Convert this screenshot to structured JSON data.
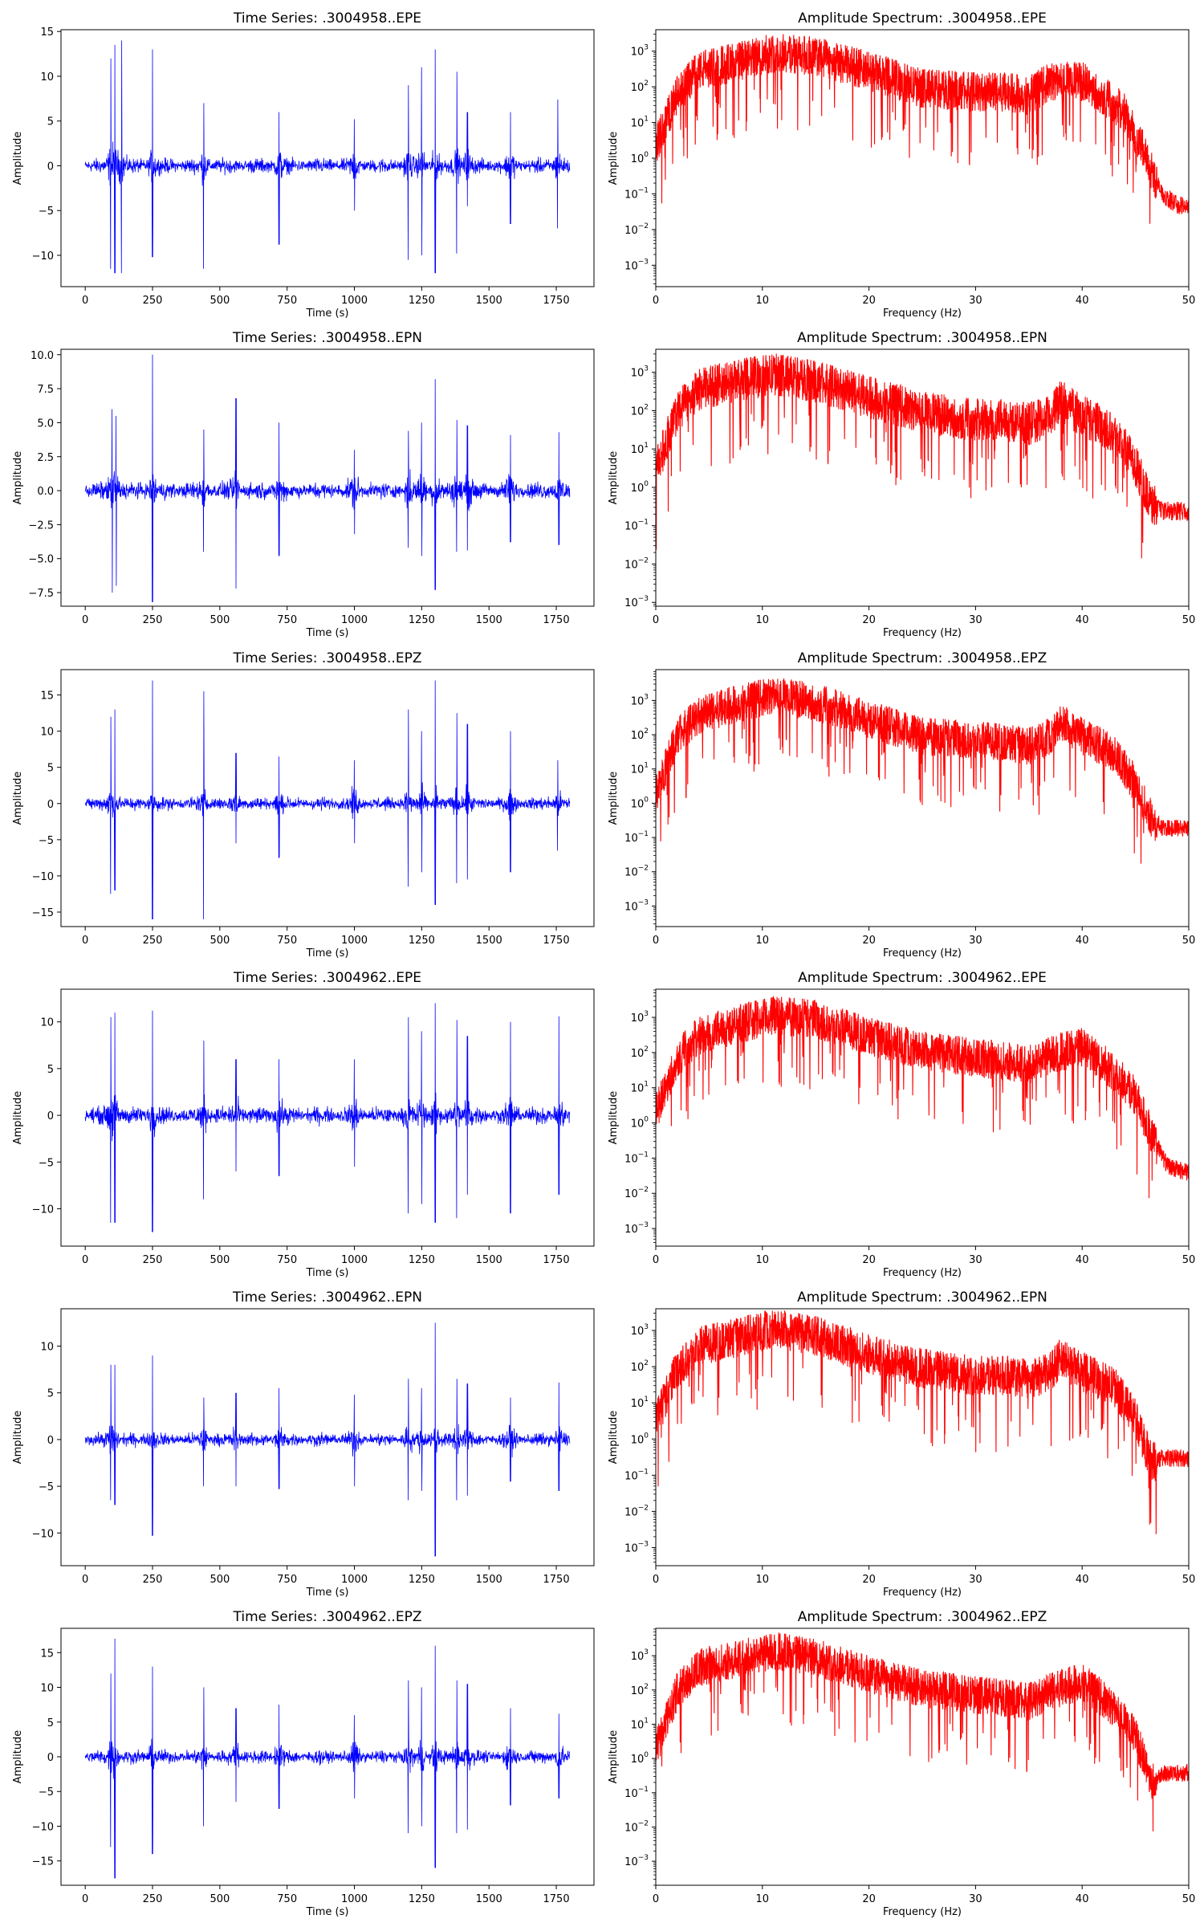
{
  "chart_data": [
    {
      "type": "line",
      "title": "Time Series: .3004958..EPE",
      "xlabel": "Time (s)",
      "ylabel": "Amplitude",
      "xlim": [
        -90,
        1890
      ],
      "ylim": [
        -13.5,
        15.2
      ],
      "xticks": [
        0,
        250,
        500,
        750,
        1000,
        1250,
        1500,
        1750
      ],
      "yticks": [
        -10,
        -5,
        0,
        5,
        10,
        15
      ],
      "xtick_labels": [
        "0",
        "250",
        "500",
        "750",
        "1000",
        "1250",
        "1500",
        "1750"
      ],
      "ytick_labels": [
        "−10",
        "−5",
        "0",
        "5",
        "10",
        "15"
      ],
      "color": "#0000ff",
      "noise_level": 1.2,
      "peaks": [
        [
          95,
          12,
          -11.5
        ],
        [
          110,
          13.5,
          -12
        ],
        [
          135,
          14,
          -12
        ],
        [
          250,
          13,
          -10.2
        ],
        [
          440,
          7,
          -11.5
        ],
        [
          720,
          6,
          -8.8
        ],
        [
          1000,
          5.2,
          -5
        ],
        [
          1200,
          9,
          -10.5
        ],
        [
          1250,
          11,
          -10
        ],
        [
          1300,
          13,
          -12
        ],
        [
          1380,
          10.5,
          -9.8
        ],
        [
          1420,
          6,
          -4.5
        ],
        [
          1580,
          6,
          -6.5
        ],
        [
          1755,
          7.4,
          -7
        ]
      ]
    },
    {
      "type": "line",
      "title": "Amplitude Spectrum: .3004958..EPE",
      "xlabel": "Frequency (Hz)",
      "ylabel": "Amplitude",
      "xlim": [
        0,
        50
      ],
      "ylog_range": [
        -3.6,
        3.6
      ],
      "xticks": [
        0,
        10,
        20,
        30,
        40,
        50
      ],
      "xtick_labels": [
        "0",
        "10",
        "20",
        "30",
        "40",
        "50"
      ],
      "ytick_exponents": [
        -3,
        -2,
        -1,
        0,
        1,
        2,
        3
      ],
      "color": "#ff0000",
      "envelope": [
        [
          0,
          0.4
        ],
        [
          2,
          1.8
        ],
        [
          4,
          2.5
        ],
        [
          7,
          2.7
        ],
        [
          11,
          3.0
        ],
        [
          15,
          2.9
        ],
        [
          20,
          2.5
        ],
        [
          25,
          2.0
        ],
        [
          30,
          1.9
        ],
        [
          33,
          1.9
        ],
        [
          35,
          1.8
        ],
        [
          37,
          2.2
        ],
        [
          40,
          2.2
        ],
        [
          42,
          1.8
        ],
        [
          44,
          1.3
        ],
        [
          46,
          0.1
        ],
        [
          47.5,
          -1.0
        ],
        [
          49,
          -1.3
        ],
        [
          50,
          -1.3
        ]
      ]
    },
    {
      "type": "line",
      "title": "Time Series: .3004958..EPN",
      "xlabel": "Time (s)",
      "ylabel": "Amplitude",
      "xlim": [
        -90,
        1890
      ],
      "ylim": [
        -8.5,
        10.4
      ],
      "xticks": [
        0,
        250,
        500,
        750,
        1000,
        1250,
        1500,
        1750
      ],
      "yticks": [
        -7.5,
        -5.0,
        -2.5,
        0.0,
        2.5,
        5.0,
        7.5,
        10.0
      ],
      "xtick_labels": [
        "0",
        "250",
        "500",
        "750",
        "1000",
        "1250",
        "1500",
        "1750"
      ],
      "ytick_labels": [
        "−7.5",
        "−5.0",
        "−2.5",
        "0.0",
        "2.5",
        "5.0",
        "7.5",
        "10.0"
      ],
      "color": "#0000ff",
      "noise_level": 0.9,
      "peaks": [
        [
          100,
          6,
          -7.5
        ],
        [
          115,
          5.5,
          -7
        ],
        [
          250,
          10,
          -8.2
        ],
        [
          440,
          4.5,
          -4.5
        ],
        [
          560,
          6.8,
          -7.2
        ],
        [
          720,
          5,
          -4.8
        ],
        [
          1000,
          3,
          -3.2
        ],
        [
          1200,
          4.4,
          -4.2
        ],
        [
          1250,
          5,
          -4.8
        ],
        [
          1300,
          8.2,
          -7.3
        ],
        [
          1380,
          5.2,
          -4.5
        ],
        [
          1420,
          4.8,
          -4.4
        ],
        [
          1580,
          4.1,
          -3.8
        ],
        [
          1760,
          4.3,
          -4.0
        ]
      ]
    },
    {
      "type": "line",
      "title": "Amplitude Spectrum: .3004958..EPN",
      "xlabel": "Frequency (Hz)",
      "ylabel": "Amplitude",
      "xlim": [
        0,
        50
      ],
      "ylog_range": [
        -3.1,
        3.6
      ],
      "xticks": [
        0,
        10,
        20,
        30,
        40,
        50
      ],
      "xtick_labels": [
        "0",
        "10",
        "20",
        "30",
        "40",
        "50"
      ],
      "ytick_exponents": [
        -3,
        -2,
        -1,
        0,
        1,
        2,
        3
      ],
      "color": "#ff0000",
      "envelope": [
        [
          0,
          0.5
        ],
        [
          2,
          2.0
        ],
        [
          4,
          2.6
        ],
        [
          7,
          2.8
        ],
        [
          11,
          3.0
        ],
        [
          15,
          2.8
        ],
        [
          20,
          2.4
        ],
        [
          25,
          2.0
        ],
        [
          30,
          1.8
        ],
        [
          33,
          1.8
        ],
        [
          35,
          1.7
        ],
        [
          37,
          1.9
        ],
        [
          38,
          2.3
        ],
        [
          40,
          1.9
        ],
        [
          43,
          1.5
        ],
        [
          45,
          0.6
        ],
        [
          46.5,
          -0.4
        ],
        [
          47.5,
          -0.6
        ],
        [
          50,
          -0.6
        ]
      ]
    },
    {
      "type": "line",
      "title": "Time Series: .3004958..EPZ",
      "xlabel": "Time (s)",
      "ylabel": "Amplitude",
      "xlim": [
        -90,
        1890
      ],
      "ylim": [
        -17,
        18.5
      ],
      "xticks": [
        0,
        250,
        500,
        750,
        1000,
        1250,
        1500,
        1750
      ],
      "yticks": [
        -15,
        -10,
        -5,
        0,
        5,
        10,
        15
      ],
      "xtick_labels": [
        "0",
        "250",
        "500",
        "750",
        "1000",
        "1250",
        "1500",
        "1750"
      ],
      "ytick_labels": [
        "−15",
        "−10",
        "−5",
        "0",
        "5",
        "10",
        "15"
      ],
      "color": "#0000ff",
      "noise_level": 1.3,
      "peaks": [
        [
          95,
          12,
          -12.5
        ],
        [
          110,
          13,
          -12
        ],
        [
          250,
          17,
          -16
        ],
        [
          440,
          15.5,
          -16
        ],
        [
          560,
          7,
          -5.5
        ],
        [
          720,
          6.5,
          -7.5
        ],
        [
          1000,
          6,
          -5.5
        ],
        [
          1200,
          13,
          -11.5
        ],
        [
          1250,
          10,
          -9.5
        ],
        [
          1300,
          17,
          -14
        ],
        [
          1380,
          12.5,
          -11
        ],
        [
          1420,
          11,
          -10.5
        ],
        [
          1580,
          10,
          -9.5
        ],
        [
          1755,
          6,
          -6.5
        ]
      ]
    },
    {
      "type": "line",
      "title": "Amplitude Spectrum: .3004958..EPZ",
      "xlabel": "Frequency (Hz)",
      "ylabel": "Amplitude",
      "xlim": [
        0,
        50
      ],
      "ylog_range": [
        -3.6,
        3.9
      ],
      "xticks": [
        0,
        10,
        20,
        30,
        40,
        50
      ],
      "xtick_labels": [
        "0",
        "10",
        "20",
        "30",
        "40",
        "50"
      ],
      "ytick_exponents": [
        -3,
        -2,
        -1,
        0,
        1,
        2,
        3
      ],
      "color": "#ff0000",
      "envelope": [
        [
          0,
          0.3
        ],
        [
          2,
          2.0
        ],
        [
          4,
          2.6
        ],
        [
          7,
          2.9
        ],
        [
          11,
          3.2
        ],
        [
          15,
          3.0
        ],
        [
          20,
          2.5
        ],
        [
          25,
          2.0
        ],
        [
          30,
          1.9
        ],
        [
          33,
          1.8
        ],
        [
          35,
          1.7
        ],
        [
          37,
          2.0
        ],
        [
          38,
          2.4
        ],
        [
          40,
          2.0
        ],
        [
          43,
          1.5
        ],
        [
          45,
          0.6
        ],
        [
          46.5,
          -0.4
        ],
        [
          47.5,
          -0.7
        ],
        [
          50,
          -0.7
        ]
      ]
    },
    {
      "type": "line",
      "title": "Time Series: .3004962..EPE",
      "xlabel": "Time (s)",
      "ylabel": "Amplitude",
      "xlim": [
        -90,
        1890
      ],
      "ylim": [
        -14,
        13.5
      ],
      "xticks": [
        0,
        250,
        500,
        750,
        1000,
        1250,
        1500,
        1750
      ],
      "yticks": [
        -10,
        -5,
        0,
        5,
        10
      ],
      "xtick_labels": [
        "0",
        "250",
        "500",
        "750",
        "1000",
        "1250",
        "1500",
        "1750"
      ],
      "ytick_labels": [
        "−10",
        "−5",
        "0",
        "5",
        "10"
      ],
      "color": "#0000ff",
      "noise_level": 1.3,
      "peaks": [
        [
          95,
          10.5,
          -11.5
        ],
        [
          110,
          11,
          -11.5
        ],
        [
          250,
          11.2,
          -12.5
        ],
        [
          440,
          8,
          -9
        ],
        [
          560,
          6,
          -6
        ],
        [
          720,
          6,
          -6.5
        ],
        [
          1000,
          6,
          -5.5
        ],
        [
          1200,
          10.5,
          -10.5
        ],
        [
          1250,
          9,
          -9.5
        ],
        [
          1300,
          12,
          -11.5
        ],
        [
          1380,
          10.2,
          -11
        ],
        [
          1420,
          8.5,
          -8.5
        ],
        [
          1580,
          10,
          -10.5
        ],
        [
          1760,
          10.6,
          -8.5
        ]
      ]
    },
    {
      "type": "line",
      "title": "Amplitude Spectrum: .3004962..EPE",
      "xlabel": "Frequency (Hz)",
      "ylabel": "Amplitude",
      "xlim": [
        0,
        50
      ],
      "ylog_range": [
        -3.5,
        3.8
      ],
      "xticks": [
        0,
        10,
        20,
        30,
        40,
        50
      ],
      "xtick_labels": [
        "0",
        "10",
        "20",
        "30",
        "40",
        "50"
      ],
      "ytick_exponents": [
        -3,
        -2,
        -1,
        0,
        1,
        2,
        3
      ],
      "color": "#ff0000",
      "envelope": [
        [
          0,
          0.3
        ],
        [
          2,
          1.9
        ],
        [
          4,
          2.5
        ],
        [
          7,
          2.8
        ],
        [
          11,
          3.1
        ],
        [
          15,
          3.0
        ],
        [
          20,
          2.5
        ],
        [
          25,
          2.1
        ],
        [
          30,
          1.9
        ],
        [
          33,
          1.8
        ],
        [
          35,
          1.7
        ],
        [
          37,
          2.0
        ],
        [
          40,
          2.2
        ],
        [
          43,
          1.5
        ],
        [
          45,
          0.8
        ],
        [
          46.5,
          -0.3
        ],
        [
          48,
          -1.2
        ],
        [
          50,
          -1.4
        ]
      ]
    },
    {
      "type": "line",
      "title": "Time Series: .3004962..EPN",
      "xlabel": "Time (s)",
      "ylabel": "Amplitude",
      "xlim": [
        -90,
        1890
      ],
      "ylim": [
        -13.5,
        14
      ],
      "xticks": [
        0,
        250,
        500,
        750,
        1000,
        1250,
        1500,
        1750
      ],
      "yticks": [
        -10,
        -5,
        0,
        5,
        10
      ],
      "xtick_labels": [
        "0",
        "250",
        "500",
        "750",
        "1000",
        "1250",
        "1500",
        "1750"
      ],
      "ytick_labels": [
        "−10",
        "−5",
        "0",
        "5",
        "10"
      ],
      "color": "#0000ff",
      "noise_level": 1.0,
      "peaks": [
        [
          95,
          8,
          -6.5
        ],
        [
          110,
          8,
          -7
        ],
        [
          250,
          9,
          -10.3
        ],
        [
          440,
          4.5,
          -5
        ],
        [
          560,
          5,
          -5
        ],
        [
          720,
          5.5,
          -5.3
        ],
        [
          1000,
          4.8,
          -5
        ],
        [
          1200,
          6.5,
          -6.5
        ],
        [
          1250,
          5.5,
          -5.5
        ],
        [
          1300,
          12.5,
          -12.5
        ],
        [
          1380,
          6.5,
          -6.5
        ],
        [
          1420,
          6,
          -6
        ],
        [
          1580,
          4.5,
          -4.5
        ],
        [
          1760,
          6.1,
          -5.5
        ]
      ]
    },
    {
      "type": "line",
      "title": "Amplitude Spectrum: .3004962..EPN",
      "xlabel": "Frequency (Hz)",
      "ylabel": "Amplitude",
      "xlim": [
        0,
        50
      ],
      "ylog_range": [
        -3.5,
        3.6
      ],
      "xticks": [
        0,
        10,
        20,
        30,
        40,
        50
      ],
      "xtick_labels": [
        "0",
        "10",
        "20",
        "30",
        "40",
        "50"
      ],
      "ytick_exponents": [
        -3,
        -2,
        -1,
        0,
        1,
        2,
        3
      ],
      "color": "#ff0000",
      "envelope": [
        [
          0,
          0.5
        ],
        [
          2,
          2.0
        ],
        [
          4,
          2.6
        ],
        [
          7,
          2.8
        ],
        [
          11,
          3.1
        ],
        [
          15,
          2.9
        ],
        [
          20,
          2.4
        ],
        [
          25,
          2.0
        ],
        [
          30,
          1.8
        ],
        [
          33,
          1.8
        ],
        [
          35,
          1.7
        ],
        [
          37,
          1.9
        ],
        [
          38,
          2.3
        ],
        [
          40,
          1.9
        ],
        [
          43,
          1.5
        ],
        [
          45,
          0.6
        ],
        [
          46.5,
          -0.6
        ],
        [
          47.5,
          -0.5
        ],
        [
          50,
          -0.5
        ]
      ]
    },
    {
      "type": "line",
      "title": "Time Series: .3004962..EPZ",
      "xlabel": "Time (s)",
      "ylabel": "Amplitude",
      "xlim": [
        -90,
        1890
      ],
      "ylim": [
        -18.5,
        18.5
      ],
      "xticks": [
        0,
        250,
        500,
        750,
        1000,
        1250,
        1500,
        1750
      ],
      "yticks": [
        -15,
        -10,
        -5,
        0,
        5,
        10,
        15
      ],
      "xtick_labels": [
        "0",
        "250",
        "500",
        "750",
        "1000",
        "1250",
        "1500",
        "1750"
      ],
      "ytick_labels": [
        "−15",
        "−10",
        "−5",
        "0",
        "5",
        "10",
        "15"
      ],
      "color": "#0000ff",
      "noise_level": 1.4,
      "peaks": [
        [
          95,
          12,
          -13
        ],
        [
          110,
          17,
          -17.5
        ],
        [
          250,
          13,
          -14
        ],
        [
          440,
          10,
          -10
        ],
        [
          560,
          7,
          -6.5
        ],
        [
          720,
          7.5,
          -7.5
        ],
        [
          1000,
          6,
          -6
        ],
        [
          1200,
          11,
          -11
        ],
        [
          1250,
          10,
          -10
        ],
        [
          1300,
          16,
          -16
        ],
        [
          1380,
          11,
          -11
        ],
        [
          1420,
          10.5,
          -10.5
        ],
        [
          1580,
          7,
          -7
        ],
        [
          1760,
          6.2,
          -6
        ]
      ]
    },
    {
      "type": "line",
      "title": "Amplitude Spectrum: .3004962..EPZ",
      "xlabel": "Frequency (Hz)",
      "ylabel": "Amplitude",
      "xlim": [
        0,
        50
      ],
      "ylog_range": [
        -3.7,
        3.8
      ],
      "xticks": [
        0,
        10,
        20,
        30,
        40,
        50
      ],
      "xtick_labels": [
        "0",
        "10",
        "20",
        "30",
        "40",
        "50"
      ],
      "ytick_exponents": [
        -3,
        -2,
        -1,
        0,
        1,
        2,
        3
      ],
      "color": "#ff0000",
      "envelope": [
        [
          0,
          0.3
        ],
        [
          2,
          2.0
        ],
        [
          4,
          2.7
        ],
        [
          7,
          2.9
        ],
        [
          11,
          3.2
        ],
        [
          15,
          3.0
        ],
        [
          20,
          2.5
        ],
        [
          25,
          2.1
        ],
        [
          30,
          1.9
        ],
        [
          33,
          1.8
        ],
        [
          35,
          1.7
        ],
        [
          37,
          2.0
        ],
        [
          40,
          2.3
        ],
        [
          43,
          1.5
        ],
        [
          45,
          0.7
        ],
        [
          46.5,
          -0.6
        ],
        [
          47.5,
          -0.4
        ],
        [
          50,
          -0.4
        ]
      ]
    }
  ]
}
